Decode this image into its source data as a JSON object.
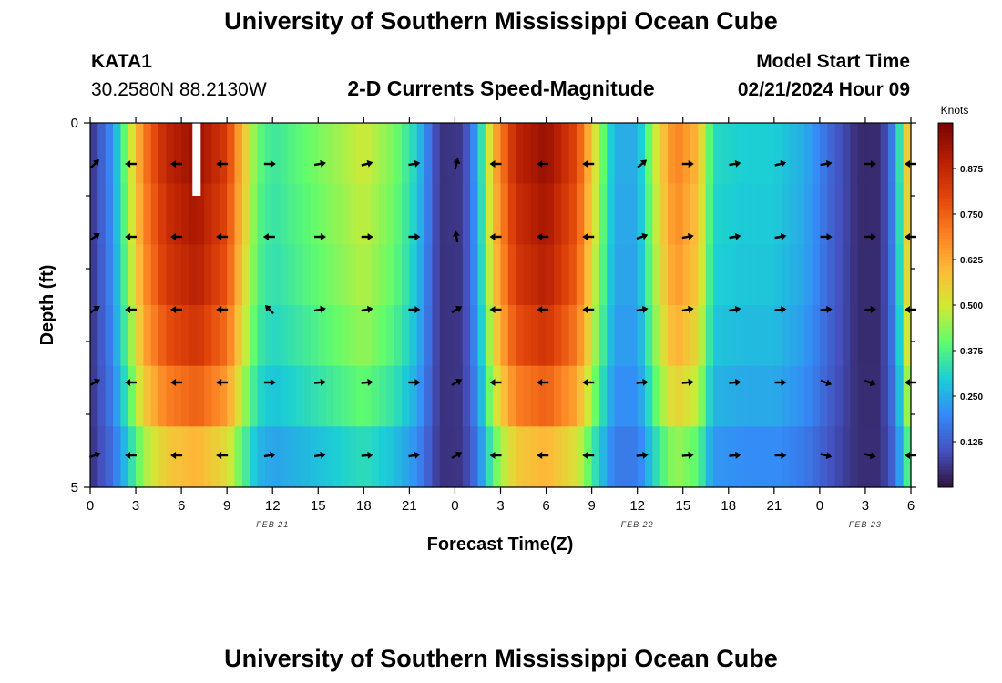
{
  "header": {
    "title": "University of Southern Mississippi Ocean Cube",
    "station_id": "KATA1",
    "station_coords": "30.2580N  88.2130W",
    "plot_title": "2-D Currents Speed-Magnitude",
    "model_start_label": "Model Start Time",
    "model_start_value": "02/21/2024 Hour 09"
  },
  "footer": {
    "title": "University of Southern Mississippi Ocean Cube"
  },
  "colors": {
    "arrow": "#000000",
    "marker": "#ffffff"
  },
  "chart_data": {
    "type": "heatmap",
    "title": "2-D Currents Speed-Magnitude",
    "xlabel": "Forecast Time(Z)",
    "ylabel": "Depth (ft)",
    "x_hours": [
      0,
      54
    ],
    "x_ticks": [
      {
        "hour": 0,
        "label": "0"
      },
      {
        "hour": 3,
        "label": "3"
      },
      {
        "hour": 6,
        "label": "6"
      },
      {
        "hour": 9,
        "label": "9"
      },
      {
        "hour": 12,
        "label": "12"
      },
      {
        "hour": 15,
        "label": "15"
      },
      {
        "hour": 18,
        "label": "18"
      },
      {
        "hour": 21,
        "label": "21"
      },
      {
        "hour": 24,
        "label": "0"
      },
      {
        "hour": 27,
        "label": "3"
      },
      {
        "hour": 30,
        "label": "6"
      },
      {
        "hour": 33,
        "label": "9"
      },
      {
        "hour": 36,
        "label": "12"
      },
      {
        "hour": 39,
        "label": "15"
      },
      {
        "hour": 42,
        "label": "18"
      },
      {
        "hour": 45,
        "label": "21"
      },
      {
        "hour": 48,
        "label": "0"
      },
      {
        "hour": 51,
        "label": "3"
      },
      {
        "hour": 54,
        "label": "6"
      }
    ],
    "date_labels": [
      {
        "hour": 12,
        "label": "FEB 21"
      },
      {
        "hour": 36,
        "label": "FEB 22"
      },
      {
        "hour": 51,
        "label": "FEB 23"
      }
    ],
    "ylim": [
      5,
      0
    ],
    "y_ticks": [
      {
        "depth": 0,
        "label": "0"
      },
      {
        "depth": 5,
        "label": "5"
      }
    ],
    "depth_levels": [
      0.5,
      1.5,
      2.5,
      3.5,
      4.5
    ],
    "speed_profile": [
      {
        "hour": 0,
        "speed": 0.04
      },
      {
        "hour": 0.5,
        "speed": 0.1
      },
      {
        "hour": 1.5,
        "speed": 0.22
      },
      {
        "hour": 2.5,
        "speed": 0.45
      },
      {
        "hour": 3.5,
        "speed": 0.7
      },
      {
        "hour": 5,
        "speed": 0.88
      },
      {
        "hour": 7,
        "speed": 0.95
      },
      {
        "hour": 9,
        "speed": 0.82
      },
      {
        "hour": 10,
        "speed": 0.6
      },
      {
        "hour": 11,
        "speed": 0.4
      },
      {
        "hour": 12,
        "speed": 0.35
      },
      {
        "hour": 15,
        "speed": 0.42
      },
      {
        "hour": 18,
        "speed": 0.5
      },
      {
        "hour": 20,
        "speed": 0.42
      },
      {
        "hour": 21.5,
        "speed": 0.3
      },
      {
        "hour": 23,
        "speed": 0.05
      },
      {
        "hour": 24.5,
        "speed": 0.06
      },
      {
        "hour": 25.5,
        "speed": 0.25
      },
      {
        "hour": 26.5,
        "speed": 0.6
      },
      {
        "hour": 28,
        "speed": 0.88
      },
      {
        "hour": 30,
        "speed": 0.95
      },
      {
        "hour": 32,
        "speed": 0.8
      },
      {
        "hour": 33.5,
        "speed": 0.45
      },
      {
        "hour": 34.5,
        "speed": 0.25
      },
      {
        "hour": 36,
        "speed": 0.25
      },
      {
        "hour": 37.5,
        "speed": 0.55
      },
      {
        "hour": 38.5,
        "speed": 0.7
      },
      {
        "hour": 40,
        "speed": 0.6
      },
      {
        "hour": 41,
        "speed": 0.32
      },
      {
        "hour": 43,
        "speed": 0.3
      },
      {
        "hour": 45,
        "speed": 0.3
      },
      {
        "hour": 47,
        "speed": 0.25
      },
      {
        "hour": 49,
        "speed": 0.12
      },
      {
        "hour": 50.5,
        "speed": 0.04
      },
      {
        "hour": 52,
        "speed": 0.04
      },
      {
        "hour": 52.8,
        "speed": 0.18
      },
      {
        "hour": 53.5,
        "speed": 0.42
      },
      {
        "hour": 54,
        "speed": 0.7
      }
    ],
    "depth_factors": [
      1.0,
      0.97,
      0.94,
      0.88,
      0.78,
      0.62
    ],
    "vector_hours": [
      0.3,
      2.7,
      5.7,
      8.7,
      11.8,
      15.1,
      18.2,
      21.3,
      24.1,
      26.7,
      29.8,
      32.8,
      36.3,
      39.3,
      42.4,
      45.4,
      48.4,
      51.3,
      54
    ],
    "vector_directions_deg": [
      [
        45,
        180,
        180,
        180,
        0,
        10,
        15,
        10,
        75,
        180,
        180,
        180,
        40,
        0,
        10,
        15,
        10,
        0,
        180
      ],
      [
        35,
        180,
        180,
        180,
        180,
        0,
        0,
        0,
        100,
        180,
        180,
        180,
        20,
        10,
        10,
        10,
        0,
        0,
        180
      ],
      [
        35,
        180,
        180,
        180,
        135,
        10,
        10,
        0,
        30,
        180,
        180,
        180,
        10,
        10,
        10,
        5,
        5,
        5,
        180
      ],
      [
        30,
        180,
        180,
        180,
        0,
        5,
        5,
        0,
        30,
        180,
        180,
        180,
        5,
        5,
        5,
        0,
        -20,
        -20,
        180
      ],
      [
        20,
        180,
        180,
        180,
        10,
        10,
        5,
        10,
        30,
        180,
        180,
        180,
        5,
        5,
        5,
        0,
        -15,
        -15,
        180
      ]
    ],
    "white_marker": {
      "hour": 7,
      "depth_top": 0,
      "depth_bottom": 1
    },
    "colorbar": {
      "label": "Knots",
      "range": [
        0.0,
        1.0
      ],
      "ticks": [
        "0.125",
        "0.250",
        "0.375",
        "0.500",
        "0.625",
        "0.750",
        "0.875"
      ],
      "tick_values": [
        0.125,
        0.25,
        0.375,
        0.5,
        0.625,
        0.75,
        0.875
      ]
    }
  }
}
